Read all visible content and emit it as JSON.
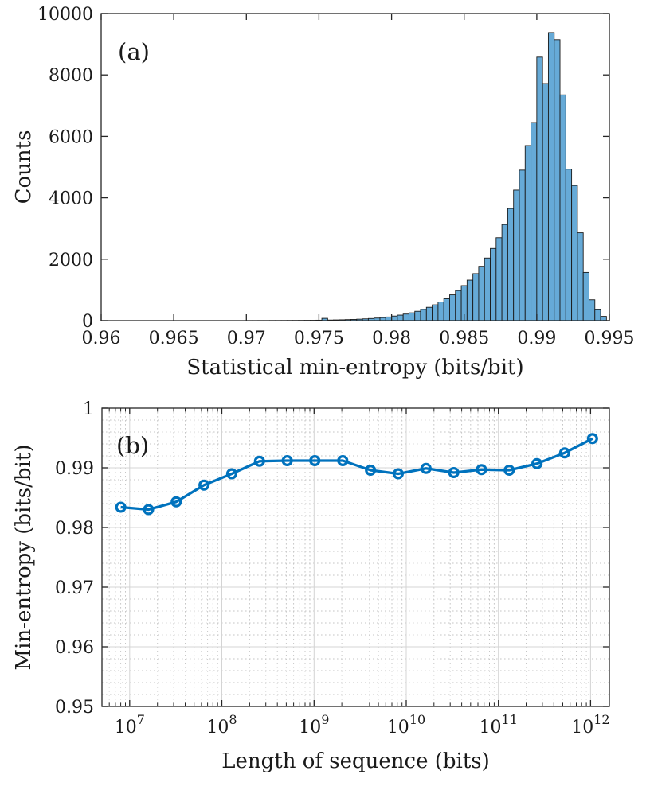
{
  "figure": {
    "background": "#ffffff",
    "axis_color": "#262626",
    "grid_major_color": "#d4d4d4",
    "grid_minor_color": "#c6c6c6"
  },
  "chart_data": [
    {
      "type": "bar",
      "panel_label": "(a)",
      "xlabel": "Statistical min-entropy (bits/bit)",
      "ylabel": "Counts",
      "xlim": [
        0.96,
        0.995
      ],
      "ylim": [
        0,
        10000
      ],
      "xtick_labels": [
        "0.96",
        "0.965",
        "0.97",
        "0.975",
        "0.98",
        "0.985",
        "0.99",
        "0.995"
      ],
      "xticks": [
        0.96,
        0.965,
        0.97,
        0.975,
        0.98,
        0.985,
        0.99,
        0.995
      ],
      "ytick_labels": [
        "0",
        "2000",
        "4000",
        "6000",
        "8000",
        "10000"
      ],
      "yticks": [
        0,
        2000,
        4000,
        6000,
        8000,
        10000
      ],
      "grid": "off",
      "bar_fill": "#66aad7",
      "bar_edge": "#1a1a1a",
      "bin_start": 0.96,
      "bin_width": 0.0004,
      "counts": [
        0,
        0,
        0,
        0,
        0,
        0,
        0,
        0,
        0,
        0,
        0,
        0,
        0,
        0,
        0,
        0,
        0,
        0,
        0,
        0,
        0,
        0,
        0,
        0,
        0,
        2,
        2,
        3,
        3,
        4,
        4,
        5,
        6,
        7,
        8,
        10,
        12,
        15,
        75,
        20,
        24,
        28,
        34,
        40,
        48,
        58,
        70,
        85,
        100,
        120,
        150,
        180,
        215,
        255,
        305,
        365,
        435,
        515,
        610,
        715,
        840,
        980,
        1140,
        1320,
        1530,
        1770,
        2040,
        2350,
        2700,
        3130,
        3650,
        4250,
        4900,
        5700,
        6450,
        8580,
        7720,
        9380,
        9150,
        7350,
        4930,
        4400,
        2860,
        1570,
        680,
        355,
        140,
        0
      ]
    },
    {
      "type": "line",
      "panel_label": "(b)",
      "xlabel": "Length of sequence (bits)",
      "ylabel": "Min-entropy (bits/bit)",
      "xscale": "log",
      "xlim": [
        5000000,
        1600000000000
      ],
      "ylim": [
        0.95,
        1.0
      ],
      "xtick_exponents": [
        7,
        8,
        9,
        10,
        11,
        12
      ],
      "xtick_base": "10",
      "ytick_labels": [
        "0.95",
        "0.96",
        "0.97",
        "0.98",
        "0.99",
        "1"
      ],
      "yticks": [
        0.95,
        0.96,
        0.97,
        0.98,
        0.99,
        1.0
      ],
      "grid": "major+minor",
      "line_color": "#0072bd",
      "x": [
        8000000,
        16000000,
        32000000,
        64000000,
        128000000,
        256000000,
        512000000,
        1020000000,
        2050000000,
        4100000000,
        8190000000,
        16400000000,
        32800000000,
        65500000000,
        131000000000,
        262000000000,
        524000000000,
        1050000000000
      ],
      "y": [
        0.9834,
        0.983,
        0.9843,
        0.9871,
        0.989,
        0.9911,
        0.9912,
        0.9912,
        0.9912,
        0.9896,
        0.989,
        0.9899,
        0.9892,
        0.9897,
        0.9896,
        0.9907,
        0.9925,
        0.9949
      ]
    }
  ]
}
